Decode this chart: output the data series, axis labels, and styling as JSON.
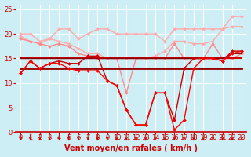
{
  "background_color": "#ceeef5",
  "grid_color": "#b0d8e0",
  "xlabel": "Vent moyen/en rafales ( km/h )",
  "xlim": [
    -0.5,
    23.5
  ],
  "ylim": [
    0,
    26
  ],
  "yticks": [
    0,
    5,
    10,
    15,
    20,
    25
  ],
  "xticks": [
    0,
    1,
    2,
    3,
    4,
    5,
    6,
    7,
    8,
    9,
    10,
    11,
    12,
    13,
    14,
    15,
    16,
    17,
    18,
    19,
    20,
    21,
    22,
    23
  ],
  "series": [
    {
      "x": [
        0,
        1,
        2,
        3,
        4,
        5,
        6,
        7,
        8,
        9,
        10,
        11,
        12,
        13,
        14,
        15,
        16,
        17,
        18,
        19,
        20,
        21,
        22,
        23
      ],
      "y": [
        20,
        20,
        18.5,
        19,
        21,
        21,
        19,
        20,
        21,
        21,
        20,
        20,
        20,
        20,
        20,
        18.5,
        21,
        21,
        21,
        21,
        21,
        21,
        23.5,
        23.5
      ],
      "color": "#ffaaaa",
      "lw": 1.0,
      "marker": "D",
      "ms": 2.0,
      "zorder": 2
    },
    {
      "x": [
        0,
        1,
        2,
        3,
        4,
        5,
        6,
        7,
        8,
        9,
        10,
        11,
        12,
        13,
        14,
        15,
        16,
        17,
        18,
        19,
        20,
        21,
        22,
        23
      ],
      "y": [
        19.5,
        18.5,
        18,
        19,
        18.5,
        18,
        17,
        16,
        16,
        15,
        15,
        15,
        15,
        15,
        15.5,
        16.5,
        18.5,
        18.5,
        18,
        18,
        18.5,
        21,
        21.5,
        21.5
      ],
      "color": "#ffaaaa",
      "lw": 1.0,
      "marker": "D",
      "ms": 2.0,
      "zorder": 2
    },
    {
      "x": [
        0,
        1,
        2,
        3,
        4,
        5,
        6,
        7,
        8,
        9,
        10,
        11,
        12,
        13,
        14,
        15,
        16,
        17,
        18,
        19,
        20,
        21,
        22,
        23
      ],
      "y": [
        19,
        18.5,
        18,
        17.5,
        18,
        17.5,
        16,
        15.5,
        15,
        15,
        15,
        8,
        15,
        15,
        15,
        15,
        18,
        15,
        15,
        15,
        18,
        15,
        15,
        16
      ],
      "color": "#ff8888",
      "lw": 1.0,
      "marker": "D",
      "ms": 2.0,
      "zorder": 2
    },
    {
      "x": [
        0,
        23
      ],
      "y": [
        13,
        13
      ],
      "color": "#990000",
      "lw": 2.0,
      "marker": null,
      "ms": 0,
      "zorder": 3
    },
    {
      "x": [
        0,
        23
      ],
      "y": [
        15,
        15
      ],
      "color": "#cc0000",
      "lw": 1.5,
      "marker": null,
      "ms": 0,
      "zorder": 3
    },
    {
      "x": [
        0,
        1,
        2,
        3,
        4,
        5,
        6,
        7,
        8,
        9,
        10,
        11,
        12,
        13,
        14,
        15,
        16,
        17,
        18,
        19,
        20,
        21,
        22,
        23
      ],
      "y": [
        12,
        14.5,
        13,
        14,
        14.5,
        14,
        14,
        15.5,
        15.5,
        10.5,
        9.5,
        4.5,
        1.5,
        1.5,
        8,
        8,
        2.5,
        13,
        15,
        15,
        15,
        14.5,
        16.5,
        16.5
      ],
      "color": "#cc0000",
      "lw": 1.0,
      "marker": "D",
      "ms": 2.0,
      "zorder": 4
    },
    {
      "x": [
        0,
        1,
        2,
        3,
        4,
        5,
        6,
        7,
        8,
        9,
        10,
        11,
        12,
        13,
        14,
        15,
        16,
        17,
        18,
        19,
        20,
        21,
        22,
        23
      ],
      "y": [
        12,
        14.5,
        13,
        14,
        14,
        13,
        12.5,
        12.5,
        12.5,
        10.5,
        9.5,
        4.5,
        1.5,
        1.5,
        8,
        8,
        0.5,
        2.5,
        13,
        15,
        15,
        14.5,
        16,
        16.5
      ],
      "color": "#ff0000",
      "lw": 1.0,
      "marker": "D",
      "ms": 2.0,
      "zorder": 4
    },
    {
      "x": [
        0,
        1,
        2,
        3,
        4,
        5,
        6,
        7,
        8,
        9,
        10,
        11,
        12,
        13,
        14,
        15,
        16,
        17,
        18,
        19,
        20,
        21,
        22,
        23
      ],
      "y": [
        15,
        15,
        15,
        15,
        15,
        15,
        15,
        15,
        15,
        15,
        15,
        15,
        15,
        15,
        15,
        15,
        15,
        15,
        15,
        15,
        15,
        15,
        16,
        16
      ],
      "color": "#880000",
      "lw": 1.0,
      "marker": null,
      "ms": 0,
      "zorder": 3
    }
  ],
  "arrow_color": "#cc0000",
  "xlabel_color": "#cc0000",
  "xlabel_fontsize": 7,
  "tick_fontsize": 6,
  "tick_color": "#cc0000"
}
